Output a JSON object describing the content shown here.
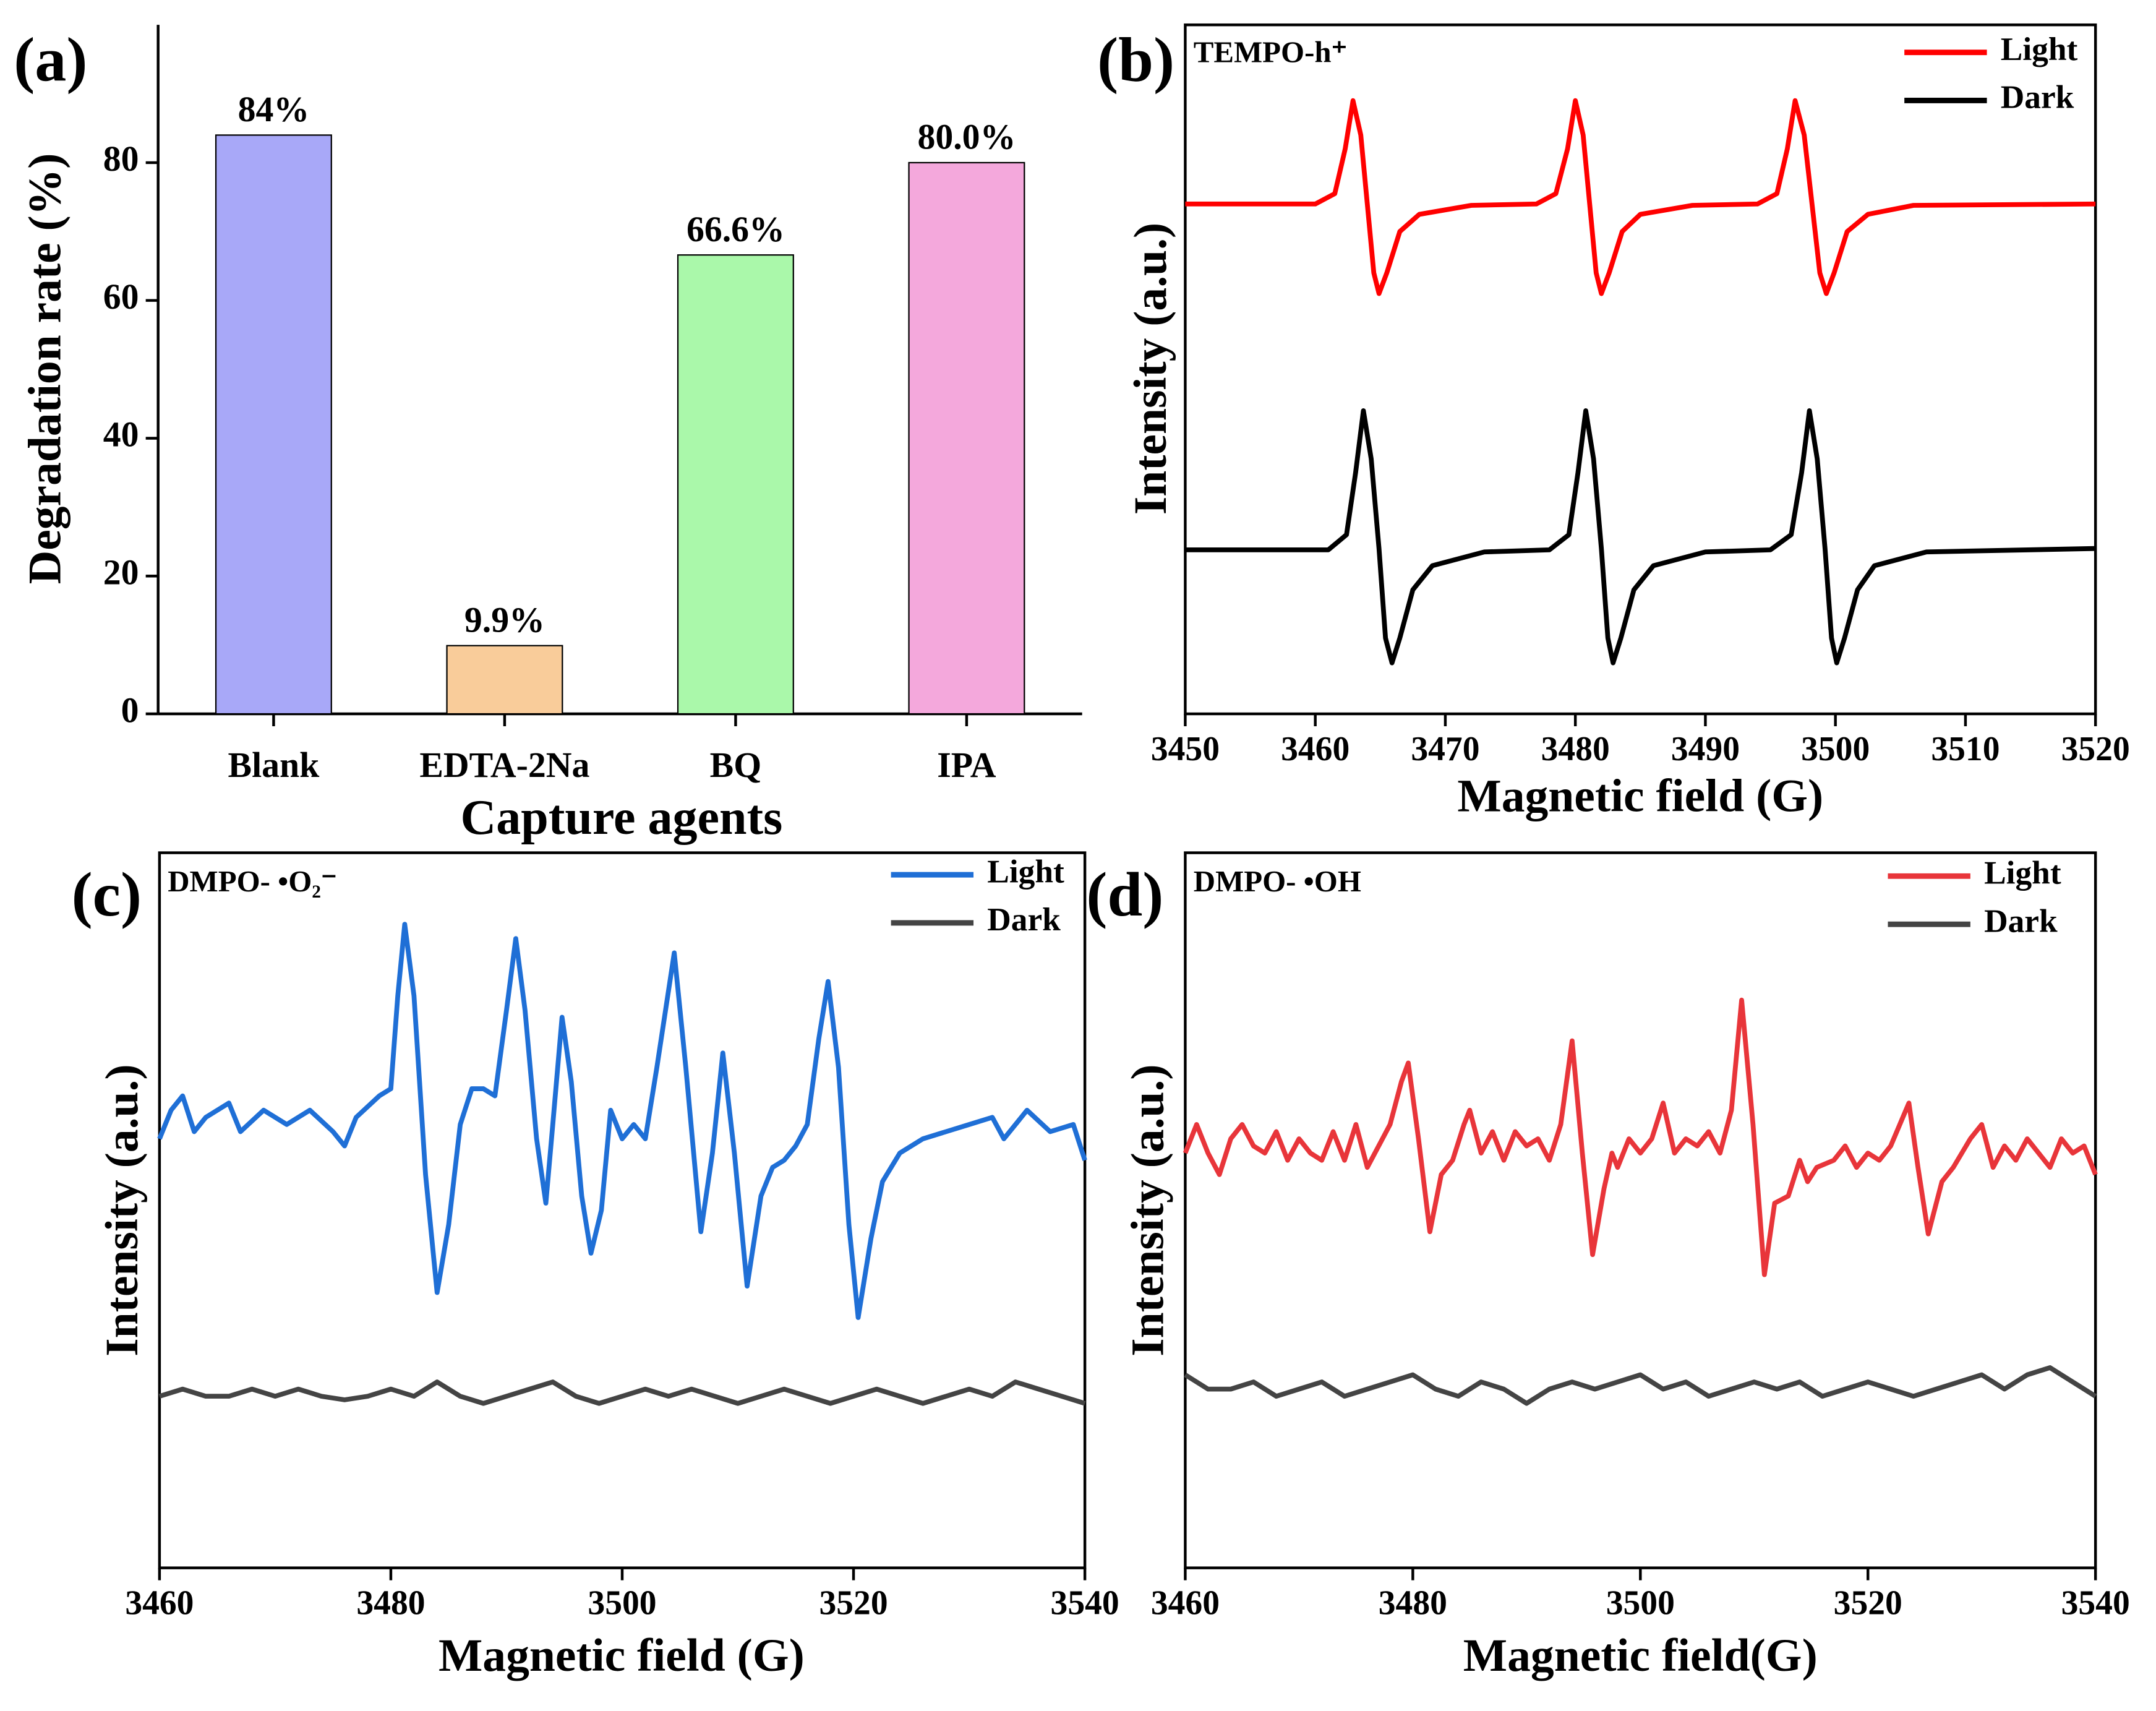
{
  "chart_data": [
    {
      "type": "bar",
      "panel_label": "(a)",
      "xlabel": "Capture agents",
      "ylabel": "Degradation rate (%)",
      "categories": [
        "Blank",
        "EDTA-2Na",
        "BQ",
        "IPA"
      ],
      "values": [
        84,
        9.9,
        66.6,
        80.0
      ],
      "value_labels": [
        "84%",
        "9.9%",
        "66.6%",
        "80.0%"
      ],
      "colors": [
        "#a8a8f8",
        "#f9cc9a",
        "#aaf8aa",
        "#f4a8dc"
      ],
      "ylim": [
        0,
        100
      ],
      "yticks": [
        0,
        20,
        40,
        60,
        80
      ]
    },
    {
      "type": "line",
      "panel_label": "(b)",
      "annotation": "TEMPO-h⁺",
      "xlabel": "Magnetic field (G)",
      "ylabel": "Intensity (a.u.)",
      "xlim": [
        3450,
        3520
      ],
      "xticks": [
        3450,
        3460,
        3470,
        3480,
        3490,
        3500,
        3510,
        3520
      ],
      "ylim": [
        0,
        100
      ],
      "legend": "upper right",
      "series": [
        {
          "name": "Light",
          "color": "#ff0000",
          "x": [
            3450,
            3460,
            3461.5,
            3462.3,
            3462.9,
            3463.5,
            3464.0,
            3464.5,
            3464.9,
            3465.5,
            3466.5,
            3468,
            3472,
            3477,
            3478.5,
            3479.4,
            3480.0,
            3480.6,
            3481.1,
            3481.6,
            3482.0,
            3482.6,
            3483.6,
            3485,
            3489,
            3494,
            3495.5,
            3496.3,
            3496.9,
            3497.6,
            3498.2,
            3498.8,
            3499.3,
            3499.9,
            3500.9,
            3502.5,
            3506,
            3520
          ],
          "values": [
            74,
            74,
            75.5,
            82,
            89,
            84,
            74,
            64,
            61,
            64,
            70,
            72.5,
            73.8,
            74,
            75.5,
            82,
            89,
            84,
            74,
            64,
            61,
            64,
            70,
            72.5,
            73.8,
            74,
            75.5,
            82,
            89,
            84,
            74,
            64,
            61,
            64,
            70,
            72.5,
            73.8,
            74
          ]
        },
        {
          "name": "Dark",
          "color": "#000000",
          "x": [
            3450,
            3461,
            3462.4,
            3463.1,
            3463.7,
            3464.3,
            3464.9,
            3465.4,
            3465.9,
            3466.5,
            3467.5,
            3469,
            3473,
            3478,
            3479.5,
            3480.2,
            3480.8,
            3481.4,
            3482.0,
            3482.5,
            3482.9,
            3483.5,
            3484.5,
            3486,
            3490,
            3495,
            3496.6,
            3497.4,
            3498.0,
            3498.6,
            3499.2,
            3499.7,
            3500.1,
            3500.7,
            3501.7,
            3503,
            3507,
            3520
          ],
          "values": [
            23.8,
            23.8,
            26,
            35,
            44,
            37,
            24,
            11,
            7.4,
            11,
            18,
            21.5,
            23.5,
            23.8,
            26,
            35,
            44,
            37,
            24,
            11,
            7.4,
            11,
            18,
            21.5,
            23.5,
            23.8,
            26,
            35,
            44,
            37,
            24,
            11,
            7.4,
            11,
            18,
            21.5,
            23.5,
            24
          ]
        }
      ]
    },
    {
      "type": "line",
      "panel_label": "(c)",
      "annotation": "DMPO- •O₂⁻",
      "xlabel": "Magnetic field (G)",
      "ylabel": "Intensity (a.u.)",
      "xlim": [
        3460,
        3540
      ],
      "xticks": [
        3460,
        3480,
        3500,
        3520,
        3540
      ],
      "ylim": [
        0,
        100
      ],
      "legend": "upper right",
      "series": [
        {
          "name": "Light",
          "color": "#1f6fd6",
          "x": [
            3460,
            3461,
            3462,
            3463,
            3464,
            3466,
            3467,
            3469,
            3471,
            3473,
            3475,
            3476,
            3477,
            3479,
            3480,
            3480.6,
            3481.2,
            3482,
            3483,
            3484,
            3485,
            3486,
            3487,
            3488,
            3489,
            3490,
            3490.8,
            3491.6,
            3492.6,
            3493.4,
            3494,
            3494.8,
            3495.6,
            3496.5,
            3497.3,
            3498.2,
            3499,
            3500,
            3501,
            3502,
            3503,
            3504.5,
            3505.5,
            3506.8,
            3507.8,
            3508.7,
            3509.7,
            3510.8,
            3512,
            3513,
            3514,
            3515,
            3516,
            3517,
            3517.8,
            3518.7,
            3519.6,
            3520.4,
            3521.5,
            3522.5,
            3524,
            3526,
            3528,
            3530,
            3532,
            3533,
            3535,
            3537,
            3539,
            3540
          ],
          "values": [
            60,
            64,
            66,
            61,
            63,
            65,
            61,
            64,
            62,
            64,
            61,
            59,
            63,
            66,
            67,
            80,
            90,
            80,
            55,
            38.5,
            48,
            62,
            67,
            67,
            66,
            78,
            88,
            78,
            60,
            51,
            62,
            77,
            68,
            52,
            44,
            50,
            64,
            60,
            62,
            60,
            70,
            86,
            70,
            47,
            58,
            72,
            58,
            39.4,
            52,
            56,
            57,
            59,
            62,
            74,
            82,
            70,
            48,
            35,
            46,
            54,
            58,
            60,
            61,
            62,
            63,
            60,
            64,
            61,
            62,
            57
          ]
        },
        {
          "name": "Dark",
          "color": "#444444",
          "x": [
            3460,
            3462,
            3464,
            3466,
            3468,
            3470,
            3472,
            3474,
            3476,
            3478,
            3480,
            3482,
            3484,
            3486,
            3488,
            3490,
            3492,
            3494,
            3496,
            3498,
            3500,
            3502,
            3504,
            3506,
            3508,
            3510,
            3512,
            3514,
            3516,
            3518,
            3520,
            3522,
            3524,
            3526,
            3528,
            3530,
            3532,
            3534,
            3536,
            3538,
            3540
          ],
          "values": [
            24,
            25,
            24,
            24,
            25,
            24,
            25,
            24,
            23.5,
            24,
            25,
            24,
            26,
            24,
            23,
            24,
            25,
            26,
            24,
            23,
            24,
            25,
            24,
            25,
            24,
            23,
            24,
            25,
            24,
            23,
            24,
            25,
            24,
            23,
            24,
            25,
            24,
            26,
            25,
            24,
            23
          ]
        }
      ]
    },
    {
      "type": "line",
      "panel_label": "(d)",
      "annotation": "DMPO- •OH",
      "xlabel": "Magnetic field(G)",
      "ylabel": "Intensity (a.u.)",
      "xlim": [
        3460,
        3540
      ],
      "xticks": [
        3460,
        3480,
        3500,
        3520,
        3540
      ],
      "ylim": [
        0,
        100
      ],
      "legend": "upper right",
      "series": [
        {
          "name": "Light",
          "color": "#e8353a",
          "x": [
            3460,
            3461,
            3462,
            3463,
            3464,
            3465,
            3466,
            3467,
            3468,
            3469,
            3470,
            3471,
            3472,
            3473,
            3474,
            3475,
            3476,
            3477,
            3478,
            3479,
            3479.6,
            3480.5,
            3481.5,
            3482.5,
            3483.5,
            3484.5,
            3485,
            3486,
            3487,
            3488,
            3489,
            3490,
            3491,
            3492,
            3493,
            3494,
            3494.9,
            3495.8,
            3496.8,
            3497.5,
            3498,
            3499,
            3500,
            3501,
            3502,
            3503,
            3504,
            3505,
            3506,
            3507,
            3508,
            3508.9,
            3509.9,
            3510.9,
            3511.8,
            3513,
            3514,
            3514.7,
            3515.5,
            3517,
            3518,
            3519,
            3520,
            3521,
            3522,
            3523.6,
            3524.4,
            3525.3,
            3526.5,
            3527.5,
            3529,
            3530,
            3531,
            3532,
            3533,
            3534,
            3535,
            3536,
            3537,
            3538,
            3539,
            3540
          ],
          "values": [
            58,
            62,
            58,
            55,
            60,
            62,
            59,
            58,
            61,
            57,
            60,
            58,
            57,
            61,
            57,
            62,
            56,
            59,
            62,
            68,
            70.6,
            60,
            47,
            55,
            57,
            62,
            64,
            58,
            61,
            57,
            61,
            59,
            60,
            57,
            62,
            73.7,
            58,
            43.8,
            53,
            58,
            56,
            60,
            58,
            60,
            65,
            58,
            60,
            59,
            61,
            58,
            64,
            79.4,
            62,
            41,
            51,
            52,
            57,
            54,
            56,
            57,
            59,
            56,
            58,
            57,
            59,
            65,
            56,
            46.7,
            54,
            56,
            60,
            62,
            56,
            59,
            57,
            60,
            58,
            56,
            60,
            58,
            59,
            55
          ]
        },
        {
          "name": "Dark",
          "color": "#444444",
          "x": [
            3460,
            3462,
            3464,
            3466,
            3468,
            3470,
            3472,
            3474,
            3476,
            3478,
            3480,
            3482,
            3484,
            3486,
            3488,
            3490,
            3492,
            3494,
            3496,
            3498,
            3500,
            3502,
            3504,
            3506,
            3508,
            3510,
            3512,
            3514,
            3516,
            3518,
            3520,
            3522,
            3524,
            3526,
            3528,
            3530,
            3532,
            3534,
            3536,
            3538,
            3540
          ],
          "values": [
            27,
            25,
            25,
            26,
            24,
            25,
            26,
            24,
            25,
            26,
            27,
            25,
            24,
            26,
            25,
            23,
            25,
            26,
            25,
            26,
            27,
            25,
            26,
            24,
            25,
            26,
            25,
            26,
            24,
            25,
            26,
            25,
            24,
            25,
            26,
            27,
            25,
            27,
            28,
            26,
            24
          ]
        }
      ]
    }
  ]
}
